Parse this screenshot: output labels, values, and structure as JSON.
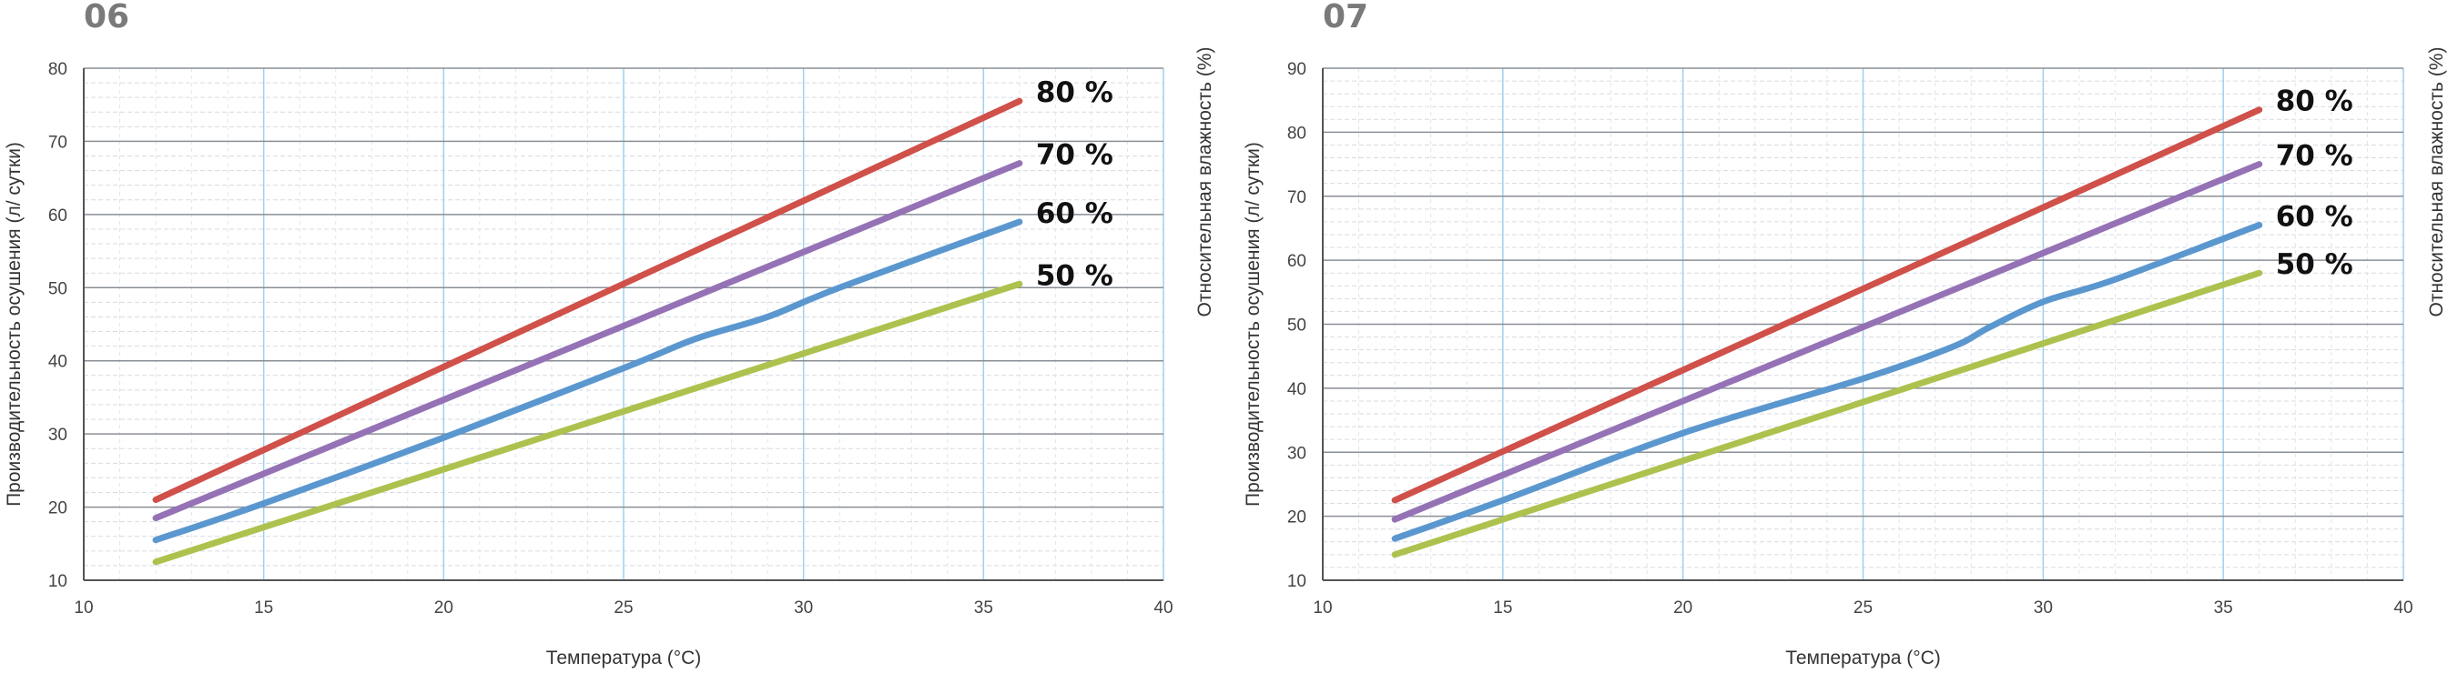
{
  "charts": [
    {
      "id": "06",
      "chart_data": {
        "type": "line",
        "xlabel": "Температура (°C)",
        "ylabel": "Производительность осушения (л/ сутки)",
        "right_label": "Относительная влажность (%)",
        "xlim": [
          10,
          40
        ],
        "ylim": [
          10,
          80
        ],
        "xticks": [
          10,
          15,
          20,
          25,
          30,
          35,
          40
        ],
        "yticks": [
          10,
          20,
          30,
          40,
          50,
          60,
          70,
          80
        ],
        "grid": true,
        "series": [
          {
            "name": "80 %",
            "color": "#d0504a",
            "points": [
              [
                12,
                21
              ],
              [
                36,
                75.5
              ]
            ]
          },
          {
            "name": "70 %",
            "color": "#9572b5",
            "points": [
              [
                12,
                18.5
              ],
              [
                36,
                67
              ]
            ]
          },
          {
            "name": "60 %",
            "color": "#5b97cf",
            "points": [
              [
                12,
                15.5
              ],
              [
                15,
                20.5
              ],
              [
                20,
                29.5
              ],
              [
                25,
                39
              ],
              [
                27,
                43
              ],
              [
                29,
                46
              ],
              [
                31,
                50
              ],
              [
                36,
                59
              ]
            ]
          },
          {
            "name": "50 %",
            "color": "#adc24e",
            "points": [
              [
                12,
                12.5
              ],
              [
                36,
                50.5
              ]
            ]
          }
        ]
      }
    },
    {
      "id": "07",
      "chart_data": {
        "type": "line",
        "xlabel": "Температура (°C)",
        "ylabel": "Производительность осушения (л/ сутки)",
        "right_label": "Относительная влажность (%)",
        "xlim": [
          10,
          40
        ],
        "ylim": [
          10,
          90
        ],
        "xticks": [
          10,
          15,
          20,
          25,
          30,
          35,
          40
        ],
        "yticks": [
          10,
          20,
          30,
          40,
          50,
          60,
          70,
          80,
          90
        ],
        "grid": true,
        "series": [
          {
            "name": "80 %",
            "color": "#d0504a",
            "points": [
              [
                12,
                22.5
              ],
              [
                36,
                83.5
              ]
            ]
          },
          {
            "name": "70 %",
            "color": "#9572b5",
            "points": [
              [
                12,
                19.5
              ],
              [
                36,
                75
              ]
            ]
          },
          {
            "name": "60 %",
            "color": "#5b97cf",
            "points": [
              [
                12,
                16.5
              ],
              [
                15,
                22.5
              ],
              [
                20,
                33
              ],
              [
                25,
                41.5
              ],
              [
                27.5,
                46.5
              ],
              [
                28.5,
                49.5
              ],
              [
                30,
                53.5
              ],
              [
                32,
                57
              ],
              [
                36,
                65.5
              ]
            ]
          },
          {
            "name": "50 %",
            "color": "#adc24e",
            "points": [
              [
                12,
                14
              ],
              [
                36,
                58
              ]
            ]
          }
        ]
      }
    }
  ]
}
